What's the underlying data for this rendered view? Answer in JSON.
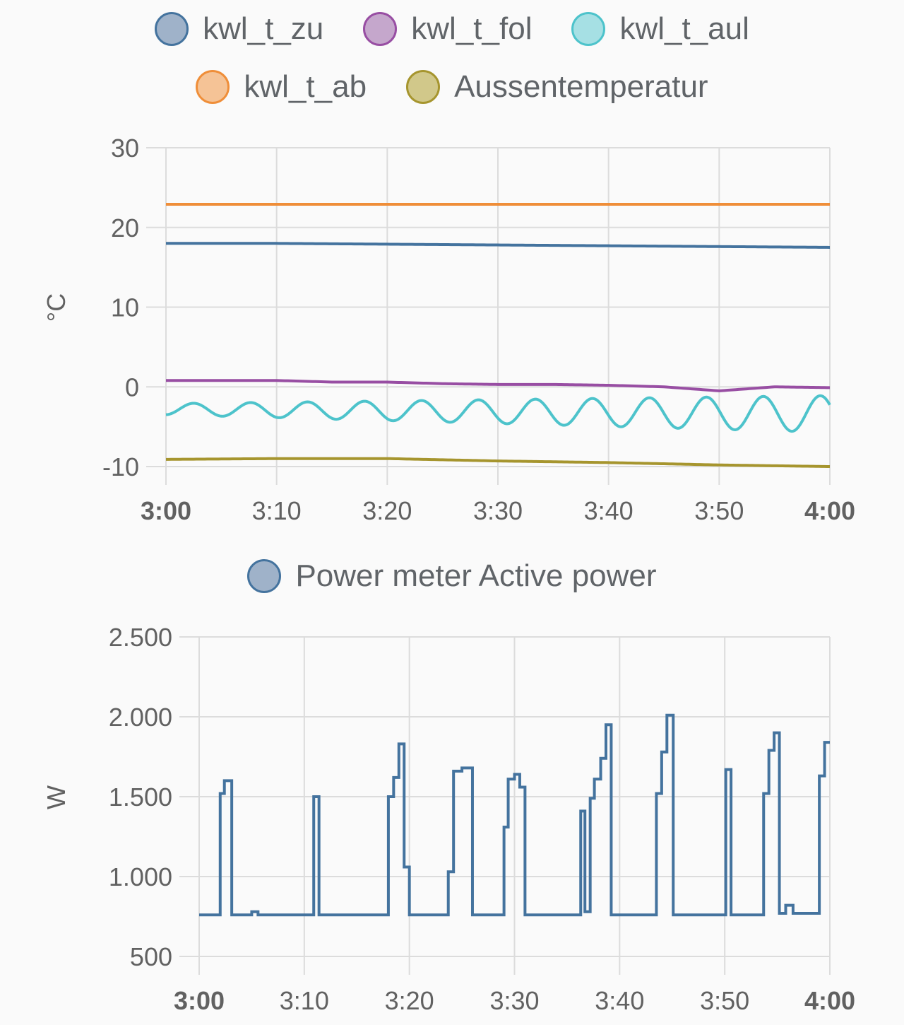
{
  "chart_data": [
    {
      "type": "line",
      "title": "",
      "xlabel": "",
      "ylabel": "°C",
      "ylim": [
        -10,
        30
      ],
      "yticks": [
        "30",
        "20",
        "10",
        "0",
        "-10"
      ],
      "ytick_values": [
        30,
        20,
        10,
        0,
        -10
      ],
      "xticks": [
        "3:00",
        "3:10",
        "3:20",
        "3:30",
        "3:40",
        "3:50",
        "4:00"
      ],
      "xtick_bold": [
        true,
        false,
        false,
        false,
        false,
        false,
        true
      ],
      "grid": true,
      "legend_placement": "top",
      "series": [
        {
          "name": "kwl_t_zu",
          "color": "#44739e",
          "fill": "#9fb2c9",
          "x": [
            0,
            10,
            20,
            30,
            40,
            50,
            60
          ],
          "y": [
            18.0,
            18.0,
            17.9,
            17.8,
            17.7,
            17.6,
            17.5
          ]
        },
        {
          "name": "kwl_t_fol",
          "color": "#984ea3",
          "fill": "#c5a7cc",
          "x": [
            0,
            5,
            10,
            15,
            20,
            25,
            30,
            35,
            40,
            45,
            50,
            55,
            60
          ],
          "y": [
            0.8,
            0.8,
            0.8,
            0.6,
            0.6,
            0.4,
            0.3,
            0.3,
            0.2,
            0.0,
            -0.5,
            0.0,
            -0.1
          ]
        },
        {
          "name": "kwl_t_aul",
          "color": "#4dc3cb",
          "fill": "#a6e0e4",
          "x": [
            0,
            60
          ],
          "y": [
            -2.8,
            -3.4
          ]
        },
        {
          "name": "kwl_t_ab",
          "color": "#ef8e39",
          "fill": "#f5c396",
          "x": [
            0,
            60
          ],
          "y": [
            22.9,
            22.9
          ]
        },
        {
          "name": "Aussentemperatur",
          "color": "#a6952e",
          "fill": "#d1c88a",
          "x": [
            0,
            10,
            20,
            30,
            40,
            50,
            60
          ],
          "y": [
            -9.1,
            -9.0,
            -9.0,
            -9.3,
            -9.5,
            -9.8,
            -10.0
          ]
        }
      ]
    },
    {
      "type": "line",
      "title": "",
      "xlabel": "",
      "ylabel": "W",
      "ylim": [
        500,
        2500
      ],
      "yticks": [
        "2.500",
        "2.000",
        "1.500",
        "1.000",
        "500"
      ],
      "ytick_values": [
        2500,
        2000,
        1500,
        1000,
        500
      ],
      "xticks": [
        "3:00",
        "3:10",
        "3:20",
        "3:30",
        "3:40",
        "3:50",
        "4:00"
      ],
      "xtick_bold": [
        true,
        false,
        false,
        false,
        false,
        false,
        true
      ],
      "grid": true,
      "legend_placement": "top",
      "series": [
        {
          "name": "Power meter Active power",
          "color": "#44739e",
          "fill": "#9fb2c9",
          "x": [
            0,
            2.0,
            2.0,
            2.4,
            2.4,
            3.1,
            3.1,
            5.0,
            5.0,
            5.6,
            5.6,
            10.9,
            10.9,
            11.4,
            11.4,
            18.0,
            18.0,
            18.5,
            18.5,
            19.0,
            19.0,
            19.5,
            19.5,
            20.0,
            20.0,
            23.7,
            23.7,
            24.2,
            24.2,
            25.0,
            25.0,
            26.0,
            26.0,
            29.0,
            29.0,
            29.4,
            29.4,
            30.0,
            30.0,
            30.5,
            30.5,
            31.0,
            31.0,
            36.3,
            36.3,
            36.7,
            36.7,
            37.2,
            37.2,
            37.6,
            37.6,
            38.2,
            38.2,
            38.7,
            38.7,
            39.2,
            39.2,
            43.5,
            43.5,
            44.0,
            44.0,
            44.5,
            44.5,
            45.1,
            45.1,
            50.1,
            50.1,
            50.6,
            50.6,
            53.7,
            53.7,
            54.2,
            54.2,
            54.7,
            54.7,
            55.2,
            55.2,
            55.8,
            55.8,
            56.5,
            56.5,
            57.0,
            57.0,
            59.0,
            59.0,
            59.5,
            59.5,
            60.0
          ],
          "y": [
            760,
            760,
            1520,
            1520,
            1600,
            1600,
            760,
            760,
            780,
            780,
            760,
            760,
            1500,
            1500,
            760,
            760,
            1500,
            1500,
            1620,
            1620,
            1830,
            1830,
            1060,
            1060,
            760,
            760,
            1030,
            1030,
            1660,
            1660,
            1680,
            1680,
            760,
            760,
            1310,
            1310,
            1610,
            1610,
            1640,
            1640,
            1560,
            1560,
            760,
            760,
            1410,
            1410,
            780,
            780,
            1490,
            1490,
            1610,
            1610,
            1740,
            1740,
            1950,
            1950,
            760,
            760,
            1520,
            1520,
            1780,
            1780,
            2010,
            2010,
            760,
            760,
            1670,
            1670,
            760,
            760,
            1520,
            1520,
            1790,
            1790,
            1900,
            1900,
            770,
            770,
            820,
            820,
            770,
            770,
            770,
            770,
            1630,
            1630,
            1840,
            1840
          ]
        }
      ]
    }
  ]
}
